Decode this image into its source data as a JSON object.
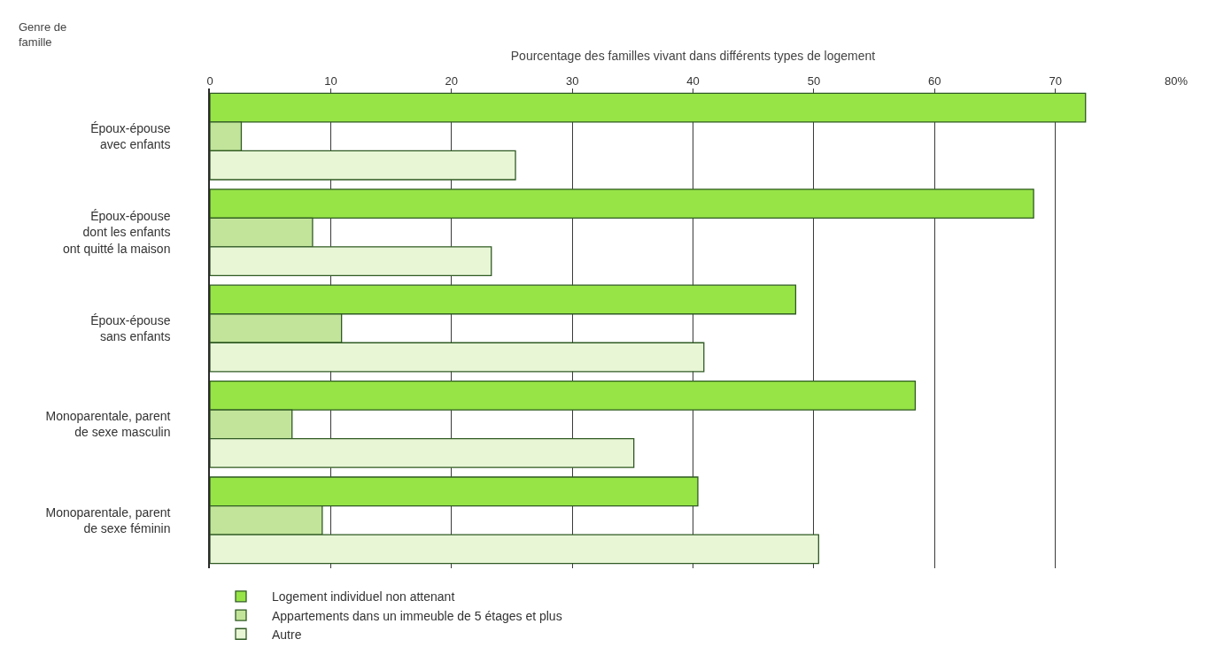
{
  "chart_data": {
    "type": "bar",
    "orientation": "horizontal",
    "xlabel": "Pourcentage des familles vivant dans différents types de logement",
    "ylabel": "Genre de\nfamille",
    "categories": [
      "Époux-épouse\navec enfants",
      "Époux-épouse\ndont les enfants\nont quitté la maison",
      "Époux-épouse\nsans enfants",
      "Monoparentale, parent\nde sexe masculin",
      "Monoparentale, parent\nde sexe féminin"
    ],
    "series": [
      {
        "name": "Logement individuel non attenant",
        "color": "#96e446",
        "values": [
          72.5,
          68.2,
          48.5,
          58.4,
          40.4
        ]
      },
      {
        "name": "Appartements dans un immeuble de 5 étages et plus",
        "color": "#c2e49a",
        "values": [
          2.6,
          8.5,
          10.9,
          6.8,
          9.3
        ]
      },
      {
        "name": "Autre",
        "color": "#e8f6d6",
        "values": [
          25.3,
          23.3,
          40.9,
          35.1,
          50.4
        ]
      }
    ],
    "xlim": [
      0,
      80
    ],
    "xticks": [
      0,
      10,
      20,
      30,
      40,
      50,
      60,
      70,
      {
        "value": 80,
        "label": "80%"
      }
    ],
    "grid": "x",
    "legend": "bottom left"
  }
}
